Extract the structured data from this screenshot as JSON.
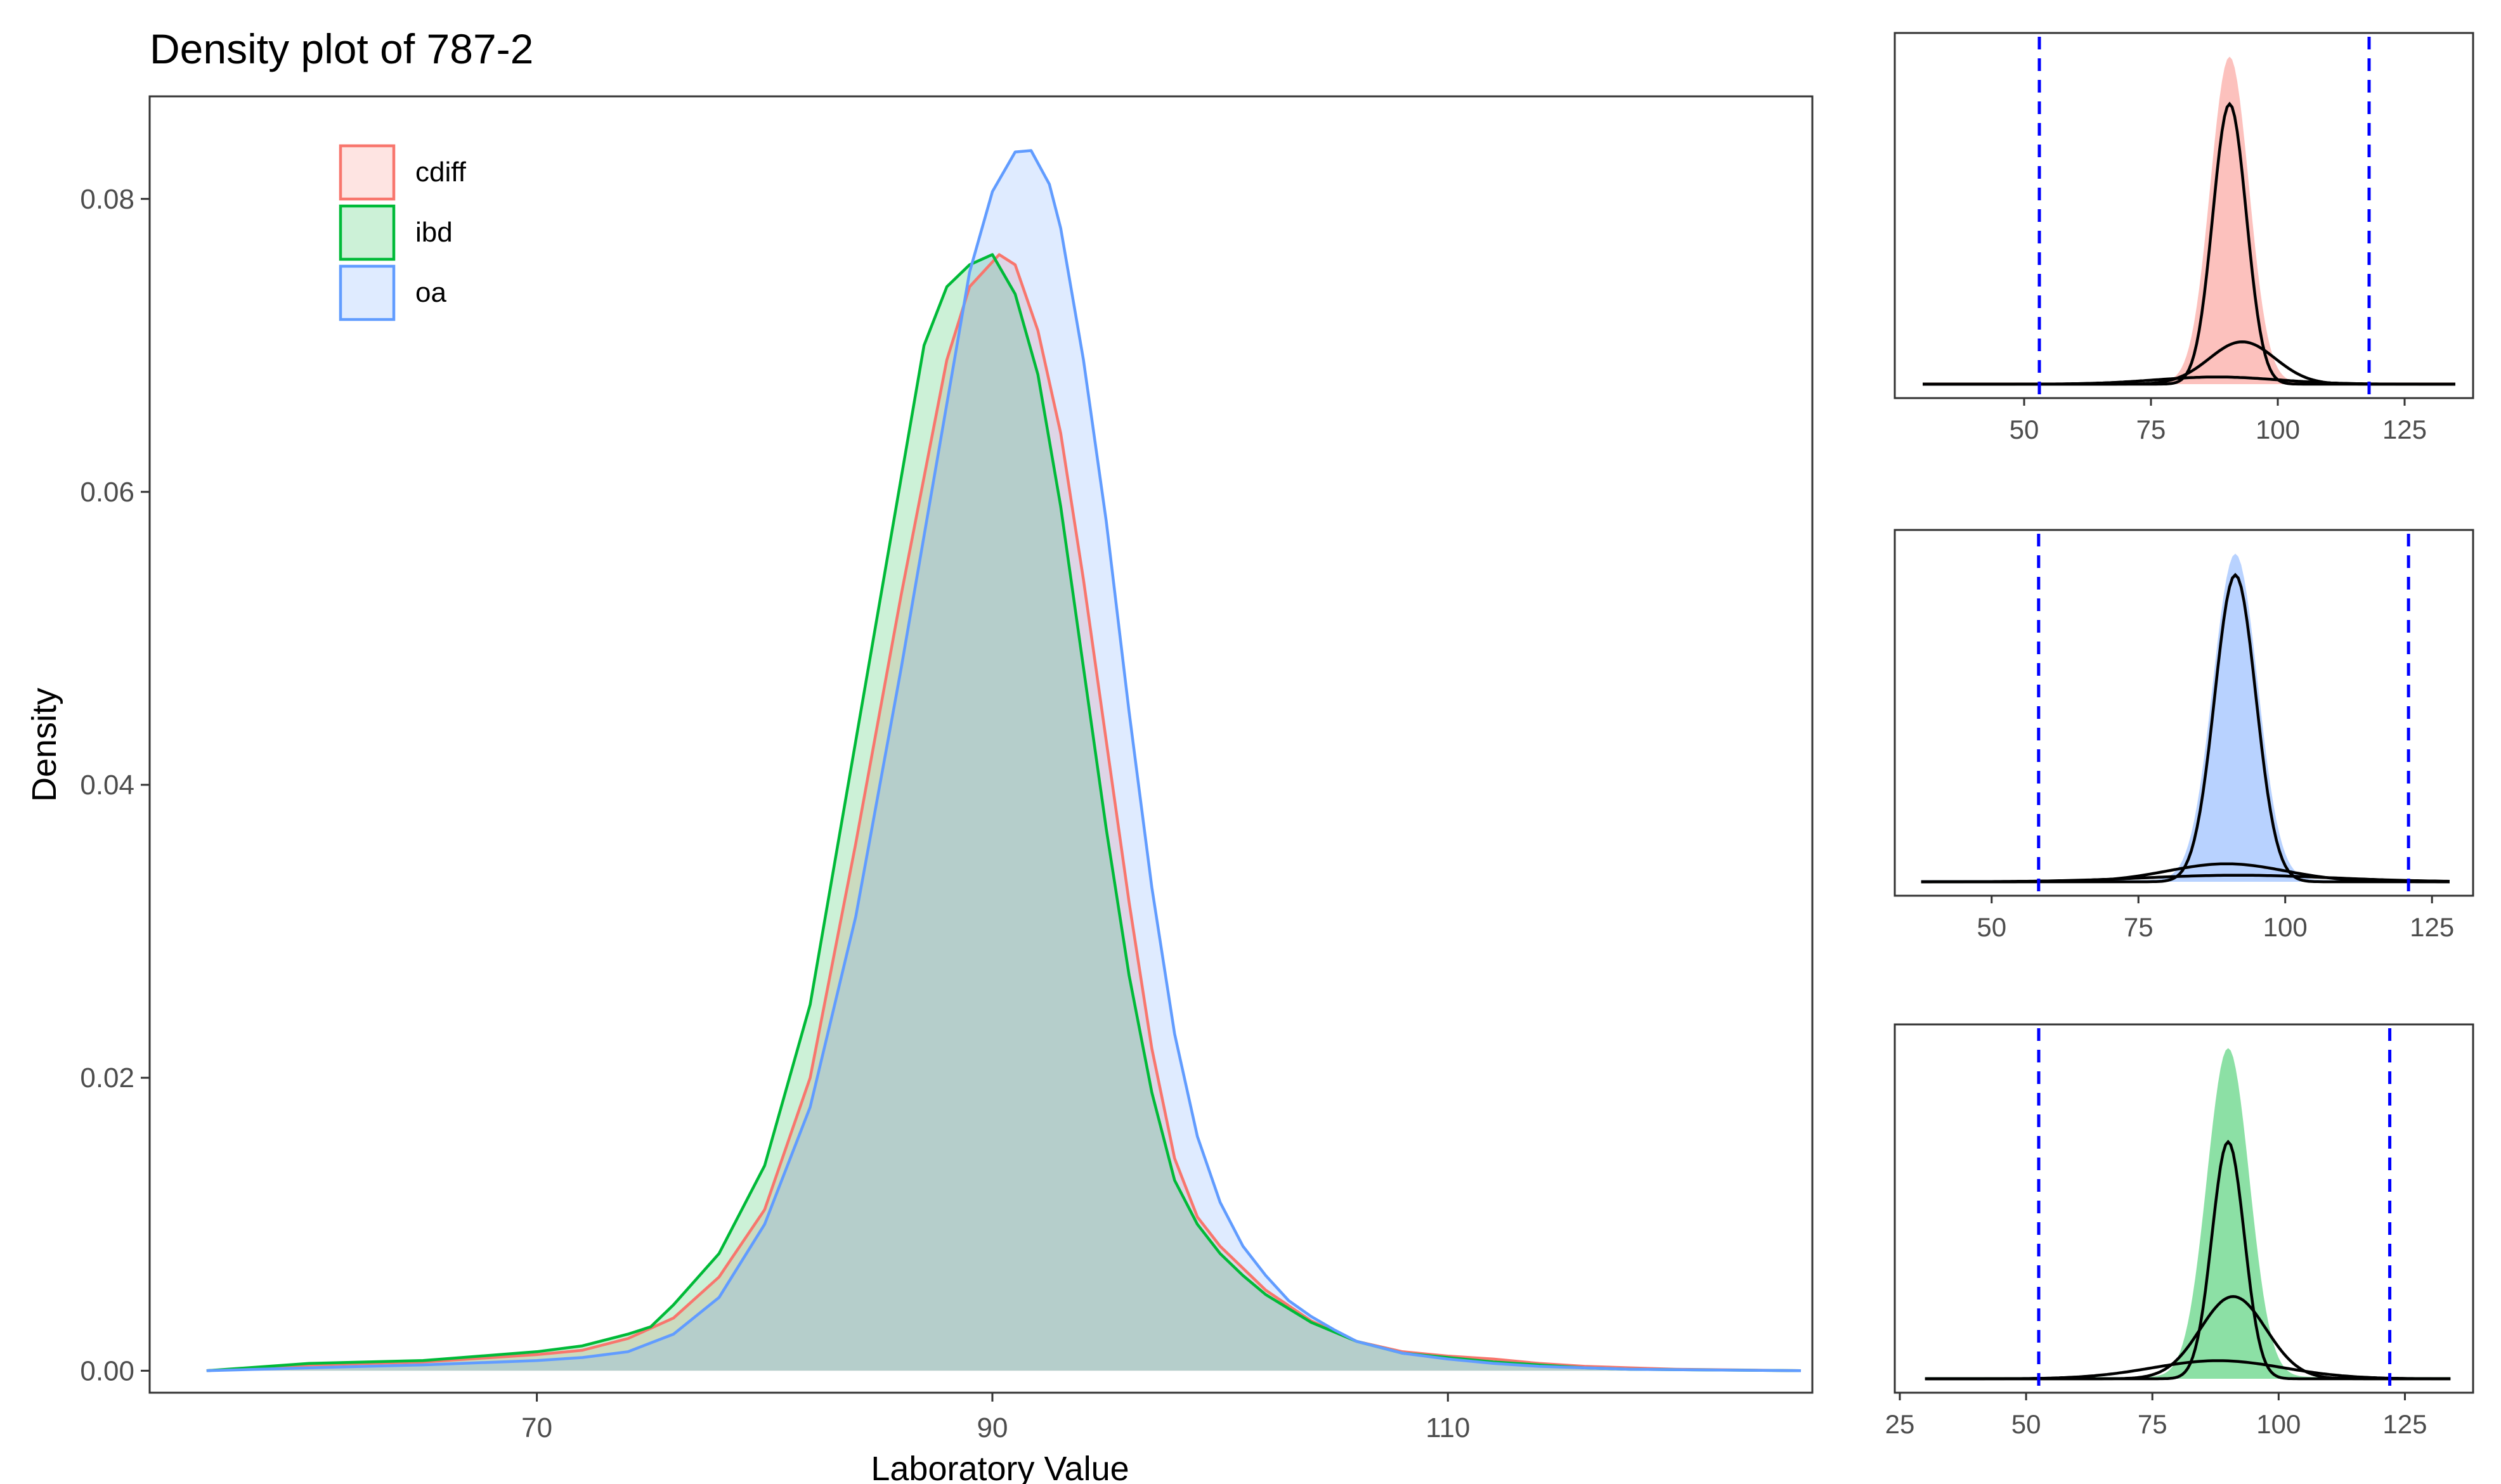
{
  "chart_data": [
    {
      "type": "area",
      "title": "Density plot of 787-2",
      "xlabel": "Laboratory Value",
      "ylabel": "Density",
      "xlim": [
        53,
        126
      ],
      "ylim": [
        -0.0015,
        0.087
      ],
      "xticks": [
        70,
        90,
        110
      ],
      "yticks": [
        0.0,
        0.02,
        0.04,
        0.06,
        0.08
      ],
      "ytick_labels": [
        "0.00",
        "0.02",
        "0.04",
        "0.06",
        "0.08"
      ],
      "grid": false,
      "legend_position": "top-left",
      "series": [
        {
          "name": "cdiff",
          "color": "#F8766D",
          "points": [
            [
              55.5,
              0
            ],
            [
              60,
              0.0004
            ],
            [
              65,
              0.0006
            ],
            [
              70,
              0.0011
            ],
            [
              72,
              0.0014
            ],
            [
              74,
              0.0022
            ],
            [
              76,
              0.0036
            ],
            [
              78,
              0.0064
            ],
            [
              80,
              0.011
            ],
            [
              82,
              0.02
            ],
            [
              84,
              0.036
            ],
            [
              86,
              0.053
            ],
            [
              88,
              0.069
            ],
            [
              89,
              0.074
            ],
            [
              90.3,
              0.0762
            ],
            [
              91,
              0.0755
            ],
            [
              92,
              0.071
            ],
            [
              93,
              0.064
            ],
            [
              94,
              0.054
            ],
            [
              95,
              0.043
            ],
            [
              96,
              0.032
            ],
            [
              97,
              0.022
            ],
            [
              98,
              0.0145
            ],
            [
              99,
              0.0105
            ],
            [
              100,
              0.0085
            ],
            [
              101,
              0.007
            ],
            [
              102,
              0.0055
            ],
            [
              104,
              0.0034
            ],
            [
              106,
              0.002
            ],
            [
              108,
              0.0013
            ],
            [
              110,
              0.001
            ],
            [
              112,
              0.0008
            ],
            [
              114,
              0.0005
            ],
            [
              116,
              0.0003
            ],
            [
              118,
              0.0002
            ],
            [
              120,
              0.0001
            ],
            [
              125.5,
              0
            ]
          ]
        },
        {
          "name": "ibd",
          "color": "#00BA38",
          "points": [
            [
              55.5,
              0
            ],
            [
              60,
              0.0005
            ],
            [
              65,
              0.0007
            ],
            [
              70,
              0.0013
            ],
            [
              72,
              0.0017
            ],
            [
              74,
              0.0025
            ],
            [
              75,
              0.003
            ],
            [
              76,
              0.0045
            ],
            [
              78,
              0.008
            ],
            [
              80,
              0.014
            ],
            [
              82,
              0.025
            ],
            [
              84,
              0.043
            ],
            [
              86,
              0.061
            ],
            [
              87,
              0.07
            ],
            [
              88,
              0.074
            ],
            [
              89,
              0.0755
            ],
            [
              90,
              0.0762
            ],
            [
              91,
              0.0735
            ],
            [
              92,
              0.068
            ],
            [
              93,
              0.059
            ],
            [
              94,
              0.048
            ],
            [
              95,
              0.037
            ],
            [
              96,
              0.027
            ],
            [
              97,
              0.019
            ],
            [
              98,
              0.013
            ],
            [
              99,
              0.01
            ],
            [
              100,
              0.008
            ],
            [
              101,
              0.0065
            ],
            [
              102,
              0.0052
            ],
            [
              104,
              0.0033
            ],
            [
              106,
              0.002
            ],
            [
              108,
              0.0012
            ],
            [
              110,
              0.0009
            ],
            [
              112,
              0.0006
            ],
            [
              114,
              0.0004
            ],
            [
              116,
              0.0002
            ],
            [
              118,
              0.0001
            ],
            [
              125.5,
              0
            ]
          ]
        },
        {
          "name": "oa",
          "color": "#619CFF",
          "points": [
            [
              55.5,
              0
            ],
            [
              60,
              0.0002
            ],
            [
              65,
              0.0004
            ],
            [
              70,
              0.0007
            ],
            [
              72,
              0.0009
            ],
            [
              74,
              0.0013
            ],
            [
              76,
              0.0025
            ],
            [
              78,
              0.005
            ],
            [
              80,
              0.01
            ],
            [
              82,
              0.018
            ],
            [
              84,
              0.031
            ],
            [
              86,
              0.048
            ],
            [
              88,
              0.066
            ],
            [
              89,
              0.075
            ],
            [
              90,
              0.0805
            ],
            [
              91,
              0.0832
            ],
            [
              91.7,
              0.0833
            ],
            [
              92.5,
              0.081
            ],
            [
              93,
              0.078
            ],
            [
              94,
              0.069
            ],
            [
              95,
              0.058
            ],
            [
              96,
              0.045
            ],
            [
              97,
              0.033
            ],
            [
              98,
              0.023
            ],
            [
              99,
              0.016
            ],
            [
              100,
              0.0115
            ],
            [
              101,
              0.0085
            ],
            [
              102,
              0.0065
            ],
            [
              103,
              0.0048
            ],
            [
              104,
              0.0037
            ],
            [
              105,
              0.0028
            ],
            [
              106,
              0.002
            ],
            [
              108,
              0.0012
            ],
            [
              110,
              0.0008
            ],
            [
              112,
              0.0005
            ],
            [
              114,
              0.0003
            ],
            [
              116,
              0.0002
            ],
            [
              118,
              0.0001
            ],
            [
              125.5,
              0
            ]
          ]
        }
      ]
    },
    {
      "type": "area",
      "xlim": [
        24.5,
        138.5
      ],
      "xticks": [
        50,
        75,
        100,
        125
      ],
      "cutoffs": [
        53,
        118
      ],
      "cutoff_color": "#0000FF",
      "fill_color": "#F8766D",
      "density": {
        "min": 30,
        "max": 135,
        "center": 90.5,
        "sigma": 3.8,
        "peak": 1.0,
        "base": 0.005
      },
      "components": [
        {
          "center": 90.5,
          "sigma": 3.3,
          "peak": 0.86
        },
        {
          "center": 93,
          "sigma": 6.5,
          "peak": 0.13
        },
        {
          "center": 88,
          "sigma": 12,
          "peak": 0.022
        }
      ]
    },
    {
      "type": "area",
      "xlim": [
        33.5,
        132
      ],
      "xticks": [
        50,
        75,
        100,
        125
      ],
      "cutoffs": [
        58,
        121
      ],
      "cutoff_color": "#0000FF",
      "fill_color": "#619CFF",
      "density": {
        "min": 38,
        "max": 128,
        "center": 91.5,
        "sigma": 3.8,
        "peak": 1.0,
        "base": 0.005
      },
      "components": [
        {
          "center": 91.5,
          "sigma": 3.5,
          "peak": 0.94
        },
        {
          "center": 90,
          "sigma": 10,
          "peak": 0.055
        },
        {
          "center": 92,
          "sigma": 16,
          "peak": 0.02
        }
      ]
    },
    {
      "type": "area",
      "xlim": [
        24,
        138.5
      ],
      "xticks": [
        25,
        50,
        75,
        100,
        125
      ],
      "cutoffs": [
        52.5,
        122
      ],
      "cutoff_color": "#0000FF",
      "fill_color": "#00BA38",
      "density": {
        "min": 30,
        "max": 134,
        "center": 90,
        "sigma": 4.2,
        "peak": 1.0,
        "base": 0.005
      },
      "components": [
        {
          "center": 90,
          "sigma": 3.2,
          "peak": 0.72
        },
        {
          "center": 91,
          "sigma": 6.5,
          "peak": 0.25
        },
        {
          "center": 88,
          "sigma": 13,
          "peak": 0.055
        }
      ]
    }
  ]
}
